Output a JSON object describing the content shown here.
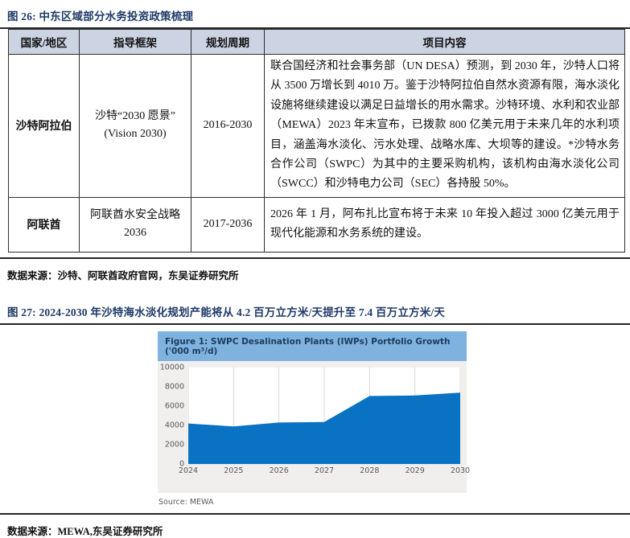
{
  "fig26": {
    "title": "图 26:  中东区域部分水务投资政策梳理",
    "table": {
      "headers": [
        "国家/地区",
        "指导框架",
        "规划周期",
        "项目内容"
      ],
      "rows": [
        {
          "region": "沙特阿拉伯",
          "framework": "沙特“2030 愿景” (Vision 2030)",
          "period": "2016-2030",
          "content": "联合国经济和社会事务部（UN DESA）预测，到 2030 年，沙特人口将从 3500 万增长到 4010 万。鉴于沙特阿拉伯自然水资源有限，海水淡化设施将继续建设以满足日益增长的用水需求。沙特环境、水利和农业部（MEWA）2023 年末宣布，已拨款 800 亿美元用于未来几年的水利项目，涵盖海水淡化、污水处理、战略水库、大坝等的建设。*沙特水务合作公司（SWPC）为其中的主要采购机构，该机构由海水淡化公司（SWCC）和沙特电力公司（SEC）各持股 50%。"
        },
        {
          "region": "阿联酋",
          "framework": "阿联酋水安全战略 2036",
          "period": "2017-2036",
          "content": "2026 年 1 月，阿布扎比宣布将于未来 10 年投入超过 3000 亿美元用于现代化能源和水务系统的建设。"
        }
      ]
    },
    "source": "数据来源：沙特、阿联酋政府官网，东吴证券研究所"
  },
  "fig27": {
    "title": "图 27:  2024-2030 年沙特海水淡化规划产能将从 4.2 百万立方米/天提升至 7.4 百万立方米/天",
    "source": "数据来源：MEWA,东吴证券研究所"
  },
  "chart_data": {
    "type": "area",
    "title": "Figure 1: SWPC Desalination Plants (IWPs) Portfolio Growth ('000 m³/d)",
    "categories": [
      "2024",
      "2025",
      "2026",
      "2027",
      "2028",
      "2029",
      "2030"
    ],
    "values": [
      4200,
      3900,
      4300,
      4350,
      7050,
      7100,
      7400
    ],
    "ylim": [
      0,
      10000
    ],
    "yticks": [
      0,
      2000,
      4000,
      6000,
      8000,
      10000
    ],
    "grid": true,
    "legend": "none",
    "source": "Source: MEWA",
    "fill_color": "#0a72c2",
    "header_bg": "#7fb2de",
    "panel_bg": "#f0efed",
    "grid_color": "#d9d9d9",
    "tick_color": "#595959"
  }
}
